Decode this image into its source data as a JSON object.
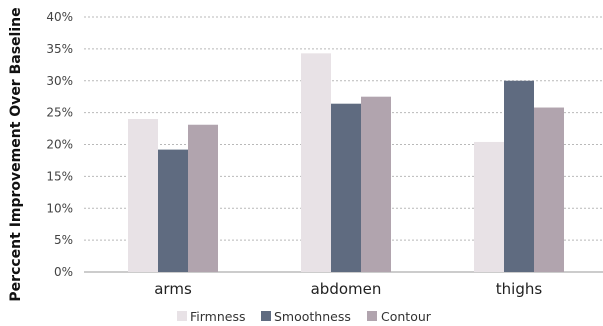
{
  "chart_data": {
    "type": "bar",
    "title": "",
    "xlabel": "",
    "ylabel": "Perccent Improvement Over Baseline",
    "categories": [
      "arms",
      "abdomen",
      "thighs"
    ],
    "series": [
      {
        "name": "Firmness",
        "values": [
          24,
          34.3,
          20.4
        ],
        "color": "#e8e2e6"
      },
      {
        "name": "Smoothness",
        "values": [
          19.2,
          26.4,
          30.0
        ],
        "color": "#5f6b80"
      },
      {
        "name": "Contour",
        "values": [
          23.1,
          27.5,
          25.8
        ],
        "color": "#b1a4ae"
      }
    ],
    "ylim": [
      0,
      40
    ],
    "yticks": [
      "0%",
      "5%",
      "10%",
      "15%",
      "20%",
      "25%",
      "30%",
      "35%",
      "40%"
    ],
    "ytick_values": [
      0,
      5,
      10,
      15,
      20,
      25,
      30,
      35,
      40
    ],
    "grid": true,
    "legend_position": "bottom-center"
  }
}
